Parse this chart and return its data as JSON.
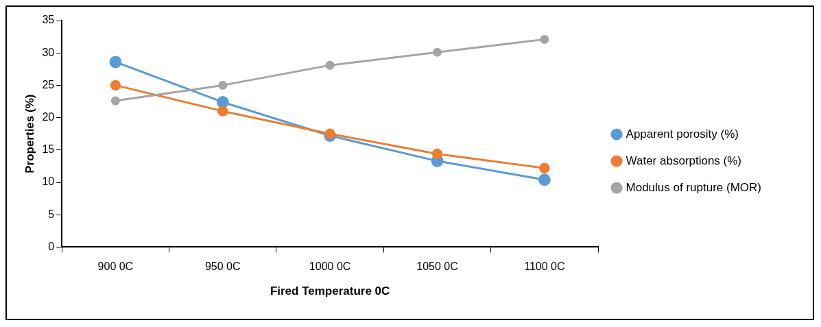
{
  "chart_data": {
    "type": "line",
    "xlabel": "Fired Temperature 0C",
    "ylabel": "Properties (%)",
    "categories": [
      "900 0C",
      "950 0C",
      "1000 0C",
      "1050 0C",
      "1100 0C"
    ],
    "series": [
      {
        "name": "Apparent porosity (%)",
        "color": "#5b9bd5",
        "values": [
          28.6,
          22.4,
          17.2,
          13.3,
          10.4
        ]
      },
      {
        "name": "Water absorptions (%)",
        "color": "#ed7d31",
        "values": [
          25.0,
          21.0,
          17.5,
          14.4,
          12.2
        ]
      },
      {
        "name": "Modulus of rupture (MOR)",
        "color": "#a5a5a5",
        "values": [
          22.6,
          25.0,
          28.1,
          30.1,
          32.1
        ]
      }
    ],
    "ylim": [
      0,
      35
    ],
    "yticks": [
      0,
      5,
      10,
      15,
      20,
      25,
      30,
      35
    ],
    "grid": false,
    "legend": "right",
    "marker": "circle",
    "line_style": "solid"
  }
}
